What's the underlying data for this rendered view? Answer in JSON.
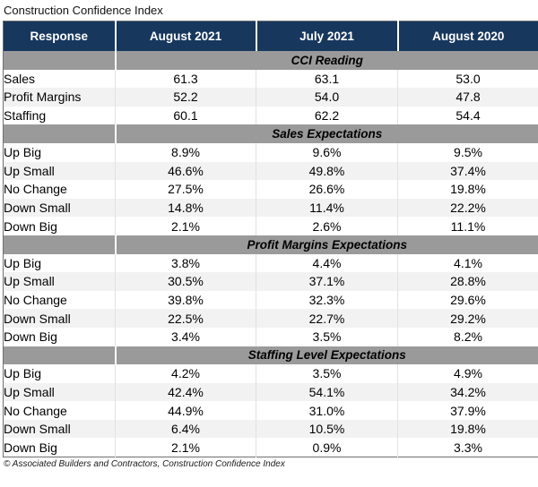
{
  "title": "Construction Confidence Index",
  "footer": "© Associated Builders and Contractors, Construction Confidence Index",
  "colors": {
    "header_bg": "#17375D",
    "header_text": "#FFFFFF",
    "section_band_bg": "#9A9A9A",
    "stripe_row_bg": "#F2F2F2",
    "outer_border": "#6F6F6F"
  },
  "table": {
    "columns": [
      "Response",
      "August 2021",
      "July 2021",
      "August 2020"
    ],
    "sections": [
      {
        "header": "CCI Reading",
        "rows": [
          [
            "Sales",
            "61.3",
            "63.1",
            "53.0"
          ],
          [
            "Profit Margins",
            "52.2",
            "54.0",
            "47.8"
          ],
          [
            "Staffing",
            "60.1",
            "62.2",
            "54.4"
          ]
        ]
      },
      {
        "header": "Sales Expectations",
        "rows": [
          [
            "Up Big",
            "8.9%",
            "9.6%",
            "9.5%"
          ],
          [
            "Up Small",
            "46.6%",
            "49.8%",
            "37.4%"
          ],
          [
            "No Change",
            "27.5%",
            "26.6%",
            "19.8%"
          ],
          [
            "Down Small",
            "14.8%",
            "11.4%",
            "22.2%"
          ],
          [
            "Down Big",
            "2.1%",
            "2.6%",
            "11.1%"
          ]
        ]
      },
      {
        "header": "Profit Margins Expectations",
        "rows": [
          [
            "Up Big",
            "3.8%",
            "4.4%",
            "4.1%"
          ],
          [
            "Up Small",
            "30.5%",
            "37.1%",
            "28.8%"
          ],
          [
            "No Change",
            "39.8%",
            "32.3%",
            "29.6%"
          ],
          [
            "Down Small",
            "22.5%",
            "22.7%",
            "29.2%"
          ],
          [
            "Down Big",
            "3.4%",
            "3.5%",
            "8.2%"
          ]
        ]
      },
      {
        "header": "Staffing Level Expectations",
        "rows": [
          [
            "Up Big",
            "4.2%",
            "3.5%",
            "4.9%"
          ],
          [
            "Up Small",
            "42.4%",
            "54.1%",
            "34.2%"
          ],
          [
            "No Change",
            "44.9%",
            "31.0%",
            "37.9%"
          ],
          [
            "Down Small",
            "6.4%",
            "10.5%",
            "19.8%"
          ],
          [
            "Down Big",
            "2.1%",
            "0.9%",
            "3.3%"
          ]
        ]
      }
    ]
  },
  "chart_data": {
    "type": "table",
    "title": "Construction Confidence Index",
    "columns": [
      "Response",
      "August 2021",
      "July 2021",
      "August 2020"
    ],
    "sections": [
      {
        "label": "CCI Reading",
        "unit": "index",
        "rows": [
          {
            "response": "Sales",
            "values": [
              61.3,
              63.1,
              53.0
            ]
          },
          {
            "response": "Profit Margins",
            "values": [
              52.2,
              54.0,
              47.8
            ]
          },
          {
            "response": "Staffing",
            "values": [
              60.1,
              62.2,
              54.4
            ]
          }
        ]
      },
      {
        "label": "Sales Expectations",
        "unit": "%",
        "rows": [
          {
            "response": "Up Big",
            "values": [
              8.9,
              9.6,
              9.5
            ]
          },
          {
            "response": "Up Small",
            "values": [
              46.6,
              49.8,
              37.4
            ]
          },
          {
            "response": "No Change",
            "values": [
              27.5,
              26.6,
              19.8
            ]
          },
          {
            "response": "Down Small",
            "values": [
              14.8,
              11.4,
              22.2
            ]
          },
          {
            "response": "Down Big",
            "values": [
              2.1,
              2.6,
              11.1
            ]
          }
        ]
      },
      {
        "label": "Profit Margins Expectations",
        "unit": "%",
        "rows": [
          {
            "response": "Up Big",
            "values": [
              3.8,
              4.4,
              4.1
            ]
          },
          {
            "response": "Up Small",
            "values": [
              30.5,
              37.1,
              28.8
            ]
          },
          {
            "response": "No Change",
            "values": [
              39.8,
              32.3,
              29.6
            ]
          },
          {
            "response": "Down Small",
            "values": [
              22.5,
              22.7,
              29.2
            ]
          },
          {
            "response": "Down Big",
            "values": [
              3.4,
              3.5,
              8.2
            ]
          }
        ]
      },
      {
        "label": "Staffing Level Expectations",
        "unit": "%",
        "rows": [
          {
            "response": "Up Big",
            "values": [
              4.2,
              3.5,
              4.9
            ]
          },
          {
            "response": "Up Small",
            "values": [
              42.4,
              54.1,
              34.2
            ]
          },
          {
            "response": "No Change",
            "values": [
              44.9,
              31.0,
              37.9
            ]
          },
          {
            "response": "Down Small",
            "values": [
              6.4,
              10.5,
              19.8
            ]
          },
          {
            "response": "Down Big",
            "values": [
              2.1,
              0.9,
              3.3
            ]
          }
        ]
      }
    ],
    "source": "© Associated Builders and Contractors, Construction Confidence Index"
  }
}
